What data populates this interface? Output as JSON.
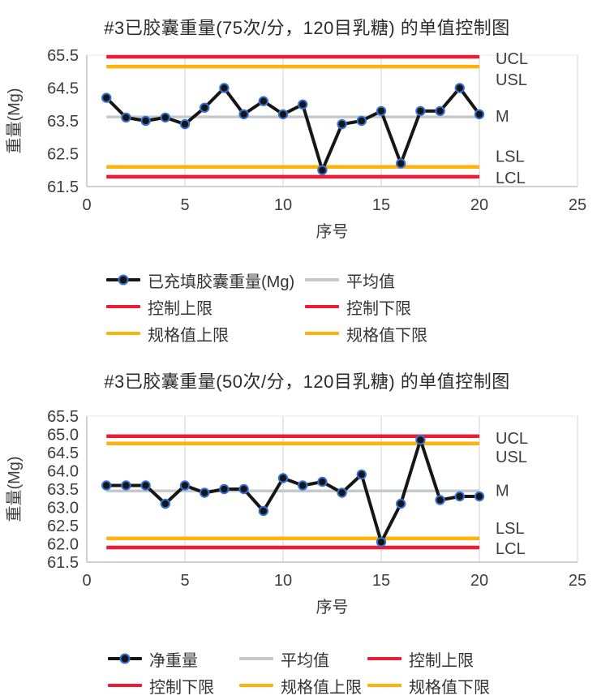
{
  "colors": {
    "red": "#ec1c34",
    "orange": "#ffb30a",
    "gray": "#c3c9cd",
    "series": "#161616",
    "marker_ring": "#3470d8",
    "text": "#3d3d3d",
    "grid": "#d9dbdd",
    "axis": "#bfc3c7"
  },
  "chart_data": [
    {
      "type": "line",
      "title": "#3已胶囊重量(75次/分，120目乳糖) 的单值控制图",
      "xlabel": "序号",
      "ylabel": "重量(Mg)",
      "xlim": [
        0,
        25
      ],
      "ylim": [
        61.5,
        65.5
      ],
      "x_ticks": [
        0,
        5,
        10,
        15,
        20,
        25
      ],
      "y_ticks": [
        "65.5",
        "64.5",
        "63.5",
        "62.5",
        "61.5"
      ],
      "series": [
        {
          "name": "已充填胶囊重量(Mg)",
          "x": [
            1,
            2,
            3,
            4,
            5,
            6,
            7,
            8,
            9,
            10,
            11,
            12,
            13,
            14,
            15,
            16,
            17,
            18,
            19,
            20
          ],
          "values": [
            64.2,
            63.6,
            63.5,
            63.6,
            63.4,
            63.9,
            64.5,
            63.7,
            64.1,
            63.7,
            64.0,
            62.0,
            63.4,
            63.5,
            63.8,
            62.2,
            63.8,
            63.8,
            64.5,
            63.7
          ]
        }
      ],
      "ref_lines": [
        {
          "label": "UCL",
          "value": 65.45,
          "color": "red"
        },
        {
          "label": "USL",
          "value": 65.15,
          "color": "orange"
        },
        {
          "label": "M",
          "value": 63.62,
          "color": "gray"
        },
        {
          "label": "LSL",
          "value": 62.1,
          "color": "orange"
        },
        {
          "label": "LCL",
          "value": 61.8,
          "color": "red"
        }
      ],
      "legend_position": "bottom",
      "grid": "vertical-only",
      "legend": [
        {
          "label": "已充填胶囊重量(Mg)",
          "color": "series",
          "marker": true
        },
        {
          "label": "平均值",
          "color": "gray",
          "marker": false
        },
        {
          "label": "控制上限",
          "color": "red",
          "marker": false
        },
        {
          "label": "控制下限",
          "color": "red",
          "marker": false
        },
        {
          "label": "规格值上限",
          "color": "orange",
          "marker": false
        },
        {
          "label": "规格值下限",
          "color": "orange",
          "marker": false
        }
      ]
    },
    {
      "type": "line",
      "title": "#3已胶囊重量(50次/分，120目乳糖) 的单值控制图",
      "xlabel": "序号",
      "ylabel": "重量(Mg)",
      "xlim": [
        0,
        25
      ],
      "ylim": [
        61.5,
        65.5
      ],
      "x_ticks": [
        0,
        5,
        10,
        15,
        20,
        25
      ],
      "y_ticks": [
        "65.5",
        "65.0",
        "64.5",
        "64.0",
        "63.5",
        "63.0",
        "62.5",
        "62.0",
        "61.5"
      ],
      "series": [
        {
          "name": "净重量",
          "x": [
            1,
            2,
            3,
            4,
            5,
            6,
            7,
            8,
            9,
            10,
            11,
            12,
            13,
            14,
            15,
            16,
            17,
            18,
            19,
            20
          ],
          "values": [
            63.6,
            63.6,
            63.6,
            63.1,
            63.6,
            63.4,
            63.5,
            63.5,
            62.9,
            63.8,
            63.6,
            63.7,
            63.4,
            63.9,
            62.05,
            63.1,
            64.85,
            63.2,
            63.3,
            63.3
          ]
        }
      ],
      "ref_lines": [
        {
          "label": "UCL",
          "value": 64.95,
          "color": "red"
        },
        {
          "label": "USL",
          "value": 64.75,
          "color": "orange"
        },
        {
          "label": "M",
          "value": 63.45,
          "color": "gray"
        },
        {
          "label": "LSL",
          "value": 62.15,
          "color": "orange"
        },
        {
          "label": "LCL",
          "value": 61.9,
          "color": "red"
        }
      ],
      "legend_position": "bottom",
      "grid": "vertical-only",
      "legend": [
        {
          "label": "净重量",
          "color": "series",
          "marker": true
        },
        {
          "label": "平均值",
          "color": "gray",
          "marker": false
        },
        {
          "label": "控制上限",
          "color": "red",
          "marker": false
        },
        {
          "label": "控制下限",
          "color": "red",
          "marker": false
        },
        {
          "label": "规格值上限",
          "color": "orange",
          "marker": false
        },
        {
          "label": "规格值下限",
          "color": "orange",
          "marker": false
        }
      ]
    }
  ]
}
